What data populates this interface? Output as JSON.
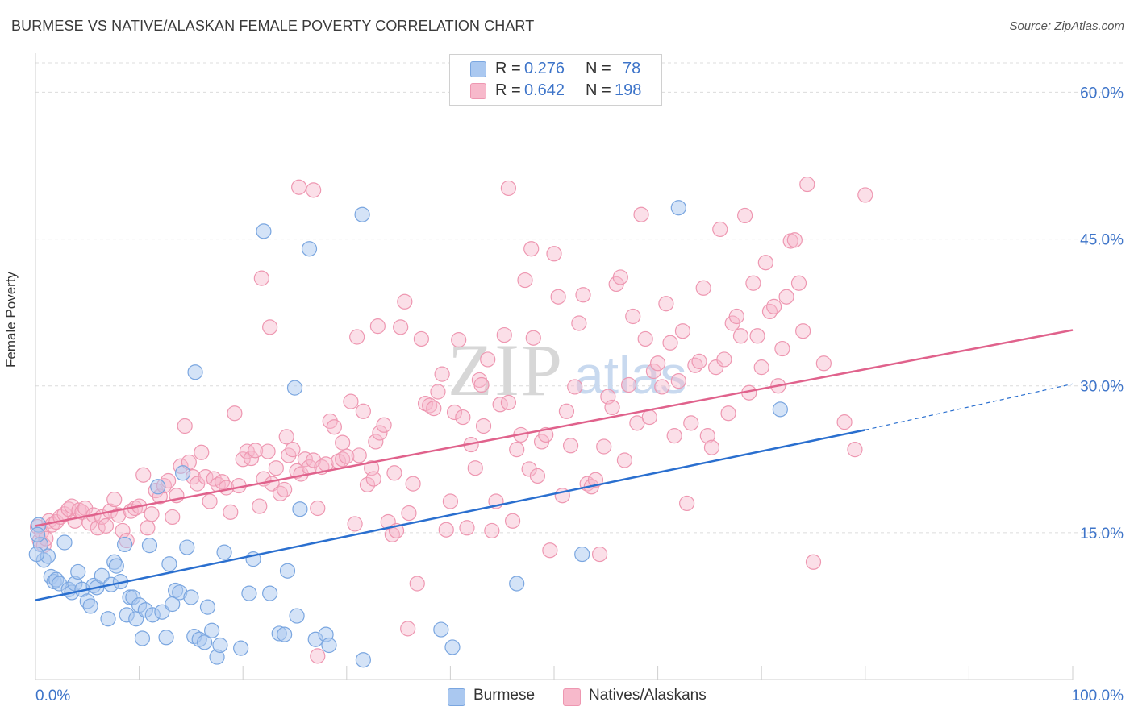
{
  "title": "BURMESE VS NATIVE/ALASKAN FEMALE POVERTY CORRELATION CHART",
  "source": "Source: ZipAtlas.com",
  "colors": {
    "burmese_fill": "#aac8f0",
    "burmese_stroke": "#7aa6e0",
    "burmese_line": "#2a6fcf",
    "native_fill": "#f7b9cb",
    "native_stroke": "#ee97b1",
    "native_line": "#e0628c",
    "axis_text": "#3d74c9",
    "grid": "#dcdcdc"
  },
  "legend": {
    "rows": [
      {
        "r_label": "R =",
        "r_value": "0.276",
        "n_label": "N =",
        "n_value": "78"
      },
      {
        "r_label": "R =",
        "r_value": "0.642",
        "n_label": "N =",
        "n_value": "198"
      }
    ]
  },
  "bottom_legend": [
    "Burmese",
    "Natives/Alaskans"
  ],
  "chart_data": {
    "type": "scatter",
    "title": "BURMESE VS NATIVE/ALASKAN FEMALE POVERTY CORRELATION CHART",
    "xlabel": "",
    "ylabel": "Female Poverty",
    "xlim": [
      0,
      100
    ],
    "ylim": [
      0,
      63
    ],
    "x_tick_labels": [
      "0.0%",
      "100.0%"
    ],
    "y_ticks": [
      15,
      30,
      45,
      60
    ],
    "y_tick_labels": [
      "15.0%",
      "30.0%",
      "45.0%",
      "60.0%"
    ],
    "grid": true,
    "legend_placement": "top-center",
    "watermark": "ZIPatlas",
    "series": [
      {
        "name": "Burmese",
        "r": 0.276,
        "n": 78,
        "trend": {
          "x0": 0,
          "y0": 8.1,
          "x1": 80,
          "y1": 25.5,
          "dashed_to": [
            100,
            30.2
          ]
        },
        "points": [
          [
            0.3,
            15.8
          ],
          [
            0.5,
            13.8
          ],
          [
            0.8,
            12.2
          ],
          [
            1.2,
            12.6
          ],
          [
            1.5,
            10.5
          ],
          [
            1.8,
            10.0
          ],
          [
            2.0,
            10.2
          ],
          [
            2.3,
            9.8
          ],
          [
            2.8,
            14.0
          ],
          [
            3.2,
            9.2
          ],
          [
            3.5,
            8.9
          ],
          [
            3.8,
            9.8
          ],
          [
            4.1,
            11.0
          ],
          [
            4.5,
            9.2
          ],
          [
            5.0,
            8.0
          ],
          [
            5.3,
            7.5
          ],
          [
            5.6,
            9.6
          ],
          [
            5.9,
            9.4
          ],
          [
            6.4,
            10.6
          ],
          [
            7.0,
            6.2
          ],
          [
            7.3,
            9.7
          ],
          [
            7.6,
            12.0
          ],
          [
            7.8,
            11.6
          ],
          [
            8.2,
            10.0
          ],
          [
            8.6,
            13.8
          ],
          [
            8.8,
            6.6
          ],
          [
            9.1,
            8.4
          ],
          [
            9.4,
            8.4
          ],
          [
            9.7,
            6.2
          ],
          [
            10.0,
            7.6
          ],
          [
            10.3,
            4.2
          ],
          [
            10.6,
            7.1
          ],
          [
            11.0,
            13.7
          ],
          [
            11.3,
            6.6
          ],
          [
            11.8,
            19.7
          ],
          [
            12.2,
            6.9
          ],
          [
            12.6,
            4.3
          ],
          [
            12.9,
            11.8
          ],
          [
            13.2,
            7.7
          ],
          [
            13.5,
            9.1
          ],
          [
            13.9,
            8.9
          ],
          [
            14.2,
            21.1
          ],
          [
            14.6,
            13.5
          ],
          [
            15.0,
            8.4
          ],
          [
            15.3,
            4.4
          ],
          [
            15.8,
            4.1
          ],
          [
            15.4,
            31.4
          ],
          [
            16.3,
            3.8
          ],
          [
            16.6,
            7.4
          ],
          [
            17.0,
            5.0
          ],
          [
            17.5,
            2.3
          ],
          [
            17.8,
            3.5
          ],
          [
            18.2,
            13.0
          ],
          [
            19.8,
            3.2
          ],
          [
            20.6,
            8.8
          ],
          [
            21.0,
            12.3
          ],
          [
            22.0,
            45.8
          ],
          [
            22.6,
            8.8
          ],
          [
            23.5,
            4.7
          ],
          [
            24.0,
            4.6
          ],
          [
            24.3,
            11.1
          ],
          [
            25.2,
            6.5
          ],
          [
            25.0,
            29.8
          ],
          [
            25.5,
            17.4
          ],
          [
            27.0,
            4.1
          ],
          [
            28.0,
            4.6
          ],
          [
            28.3,
            3.5
          ],
          [
            26.4,
            44.0
          ],
          [
            31.5,
            47.5
          ],
          [
            31.6,
            2.0
          ],
          [
            39.1,
            5.1
          ],
          [
            40.2,
            3.3
          ],
          [
            46.4,
            9.8
          ],
          [
            52.7,
            12.8
          ],
          [
            62.0,
            48.2
          ],
          [
            71.8,
            27.6
          ],
          [
            0.1,
            12.8
          ],
          [
            0.2,
            14.8
          ]
        ]
      },
      {
        "name": "Natives/Alaskans",
        "r": 0.642,
        "n": 198,
        "trend": {
          "x0": 0,
          "y0": 15.7,
          "x1": 100,
          "y1": 35.7
        },
        "points": [
          [
            0.2,
            15.6
          ],
          [
            0.4,
            14.2
          ],
          [
            0.6,
            15.1
          ],
          [
            0.8,
            13.7
          ],
          [
            1.0,
            14.4
          ],
          [
            1.3,
            16.2
          ],
          [
            1.6,
            15.8
          ],
          [
            2.0,
            16.1
          ],
          [
            2.4,
            16.6
          ],
          [
            2.8,
            16.9
          ],
          [
            3.2,
            17.4
          ],
          [
            3.5,
            17.7
          ],
          [
            3.8,
            16.2
          ],
          [
            4.2,
            17.3
          ],
          [
            4.5,
            17.1
          ],
          [
            4.8,
            17.5
          ],
          [
            5.2,
            16.0
          ],
          [
            5.6,
            16.8
          ],
          [
            6.0,
            15.5
          ],
          [
            6.4,
            16.6
          ],
          [
            6.8,
            15.7
          ],
          [
            7.2,
            17.2
          ],
          [
            7.6,
            18.4
          ],
          [
            8.0,
            16.8
          ],
          [
            8.4,
            15.2
          ],
          [
            8.8,
            14.2
          ],
          [
            9.2,
            17.2
          ],
          [
            9.6,
            17.5
          ],
          [
            10.0,
            17.7
          ],
          [
            10.4,
            20.9
          ],
          [
            10.8,
            15.5
          ],
          [
            11.2,
            16.9
          ],
          [
            11.6,
            19.3
          ],
          [
            12.0,
            18.7
          ],
          [
            12.4,
            19.8
          ],
          [
            12.8,
            20.3
          ],
          [
            13.2,
            16.6
          ],
          [
            13.6,
            18.8
          ],
          [
            14.0,
            21.8
          ],
          [
            14.4,
            25.9
          ],
          [
            14.8,
            22.2
          ],
          [
            15.2,
            20.7
          ],
          [
            15.6,
            20.0
          ],
          [
            16.0,
            23.2
          ],
          [
            16.4,
            20.7
          ],
          [
            16.8,
            18.2
          ],
          [
            17.2,
            20.5
          ],
          [
            17.6,
            19.9
          ],
          [
            18.0,
            20.2
          ],
          [
            18.4,
            19.6
          ],
          [
            18.8,
            17.1
          ],
          [
            19.2,
            27.2
          ],
          [
            19.6,
            19.8
          ],
          [
            20.0,
            22.5
          ],
          [
            20.4,
            23.3
          ],
          [
            20.8,
            22.6
          ],
          [
            21.2,
            23.4
          ],
          [
            21.6,
            17.7
          ],
          [
            22.0,
            20.5
          ],
          [
            22.4,
            23.3
          ],
          [
            22.8,
            20.0
          ],
          [
            23.2,
            21.6
          ],
          [
            23.6,
            19.0
          ],
          [
            24.0,
            19.4
          ],
          [
            24.4,
            22.9
          ],
          [
            24.8,
            23.5
          ],
          [
            25.2,
            21.3
          ],
          [
            25.6,
            21.0
          ],
          [
            26.0,
            22.5
          ],
          [
            26.4,
            21.7
          ],
          [
            26.8,
            22.4
          ],
          [
            27.2,
            17.5
          ],
          [
            27.6,
            21.7
          ],
          [
            28.0,
            22.0
          ],
          [
            28.4,
            26.4
          ],
          [
            28.8,
            25.8
          ],
          [
            29.2,
            22.3
          ],
          [
            29.6,
            22.5
          ],
          [
            30.0,
            22.8
          ],
          [
            30.4,
            28.4
          ],
          [
            30.8,
            15.9
          ],
          [
            31.2,
            22.9
          ],
          [
            31.6,
            27.4
          ],
          [
            32.0,
            19.9
          ],
          [
            32.4,
            21.6
          ],
          [
            32.8,
            24.3
          ],
          [
            33.2,
            25.2
          ],
          [
            33.6,
            26.0
          ],
          [
            34.0,
            16.1
          ],
          [
            34.4,
            14.8
          ],
          [
            34.8,
            15.2
          ],
          [
            35.2,
            36.0
          ],
          [
            35.6,
            38.6
          ],
          [
            36.0,
            17.0
          ],
          [
            36.4,
            20.0
          ],
          [
            36.8,
            9.8
          ],
          [
            37.2,
            34.8
          ],
          [
            37.6,
            28.2
          ],
          [
            38.0,
            28.0
          ],
          [
            38.4,
            27.7
          ],
          [
            38.8,
            29.4
          ],
          [
            39.2,
            31.2
          ],
          [
            39.6,
            15.3
          ],
          [
            40.0,
            18.2
          ],
          [
            40.4,
            27.3
          ],
          [
            40.8,
            34.7
          ],
          [
            41.2,
            26.8
          ],
          [
            41.6,
            15.5
          ],
          [
            42.0,
            24.0
          ],
          [
            42.4,
            21.6
          ],
          [
            42.8,
            30.6
          ],
          [
            43.2,
            25.9
          ],
          [
            43.6,
            32.7
          ],
          [
            44.0,
            15.2
          ],
          [
            44.4,
            18.2
          ],
          [
            44.8,
            28.1
          ],
          [
            45.2,
            35.2
          ],
          [
            45.6,
            50.2
          ],
          [
            46.0,
            16.2
          ],
          [
            46.4,
            23.5
          ],
          [
            46.8,
            25.0
          ],
          [
            47.2,
            40.8
          ],
          [
            47.6,
            21.5
          ],
          [
            48.0,
            34.9
          ],
          [
            48.4,
            20.8
          ],
          [
            48.8,
            24.3
          ],
          [
            49.2,
            25.0
          ],
          [
            49.6,
            13.2
          ],
          [
            50.0,
            43.5
          ],
          [
            50.4,
            39.1
          ],
          [
            50.8,
            18.8
          ],
          [
            51.2,
            27.4
          ],
          [
            51.6,
            23.9
          ],
          [
            52.0,
            29.9
          ],
          [
            52.4,
            36.4
          ],
          [
            52.8,
            39.3
          ],
          [
            53.2,
            20.0
          ],
          [
            53.6,
            19.7
          ],
          [
            54.0,
            20.4
          ],
          [
            54.4,
            12.8
          ],
          [
            54.8,
            23.8
          ],
          [
            55.2,
            28.9
          ],
          [
            55.6,
            27.8
          ],
          [
            56.0,
            40.4
          ],
          [
            56.4,
            41.1
          ],
          [
            56.8,
            22.4
          ],
          [
            57.2,
            30.1
          ],
          [
            57.6,
            37.1
          ],
          [
            58.0,
            26.2
          ],
          [
            58.4,
            47.5
          ],
          [
            58.8,
            34.8
          ],
          [
            59.2,
            26.8
          ],
          [
            59.6,
            31.5
          ],
          [
            60.0,
            32.3
          ],
          [
            60.4,
            29.9
          ],
          [
            60.8,
            38.4
          ],
          [
            61.2,
            34.4
          ],
          [
            61.6,
            24.9
          ],
          [
            62.0,
            30.5
          ],
          [
            62.4,
            35.6
          ],
          [
            62.8,
            18.0
          ],
          [
            63.2,
            26.2
          ],
          [
            63.6,
            32.1
          ],
          [
            64.0,
            32.5
          ],
          [
            64.4,
            40.0
          ],
          [
            64.8,
            24.9
          ],
          [
            65.2,
            23.7
          ],
          [
            65.6,
            31.9
          ],
          [
            66.0,
            46.0
          ],
          [
            66.4,
            32.7
          ],
          [
            66.8,
            27.2
          ],
          [
            67.2,
            36.4
          ],
          [
            67.6,
            37.1
          ],
          [
            68.0,
            35.1
          ],
          [
            68.4,
            47.4
          ],
          [
            68.8,
            29.3
          ],
          [
            69.2,
            40.5
          ],
          [
            69.6,
            35.1
          ],
          [
            70.0,
            31.9
          ],
          [
            70.4,
            42.6
          ],
          [
            70.8,
            37.6
          ],
          [
            71.2,
            38.1
          ],
          [
            71.6,
            30.0
          ],
          [
            72.0,
            33.8
          ],
          [
            72.4,
            39.1
          ],
          [
            72.8,
            44.8
          ],
          [
            73.2,
            44.9
          ],
          [
            73.6,
            40.5
          ],
          [
            74.0,
            35.6
          ],
          [
            74.4,
            50.6
          ],
          [
            75.0,
            12.0
          ],
          [
            76.0,
            32.3
          ],
          [
            78.0,
            26.3
          ],
          [
            79.0,
            23.5
          ],
          [
            80.0,
            49.5
          ],
          [
            25.4,
            50.3
          ],
          [
            26.8,
            50.0
          ],
          [
            29.6,
            24.2
          ],
          [
            27.2,
            2.4
          ],
          [
            35.9,
            5.2
          ],
          [
            21.8,
            41.0
          ],
          [
            24.2,
            24.8
          ],
          [
            33.0,
            36.1
          ],
          [
            43.0,
            30.1
          ],
          [
            47.8,
            44.0
          ],
          [
            32.6,
            20.5
          ],
          [
            34.6,
            21.1
          ],
          [
            22.6,
            36.0
          ],
          [
            31.0,
            35.0
          ],
          [
            45.6,
            28.3
          ]
        ]
      }
    ]
  }
}
